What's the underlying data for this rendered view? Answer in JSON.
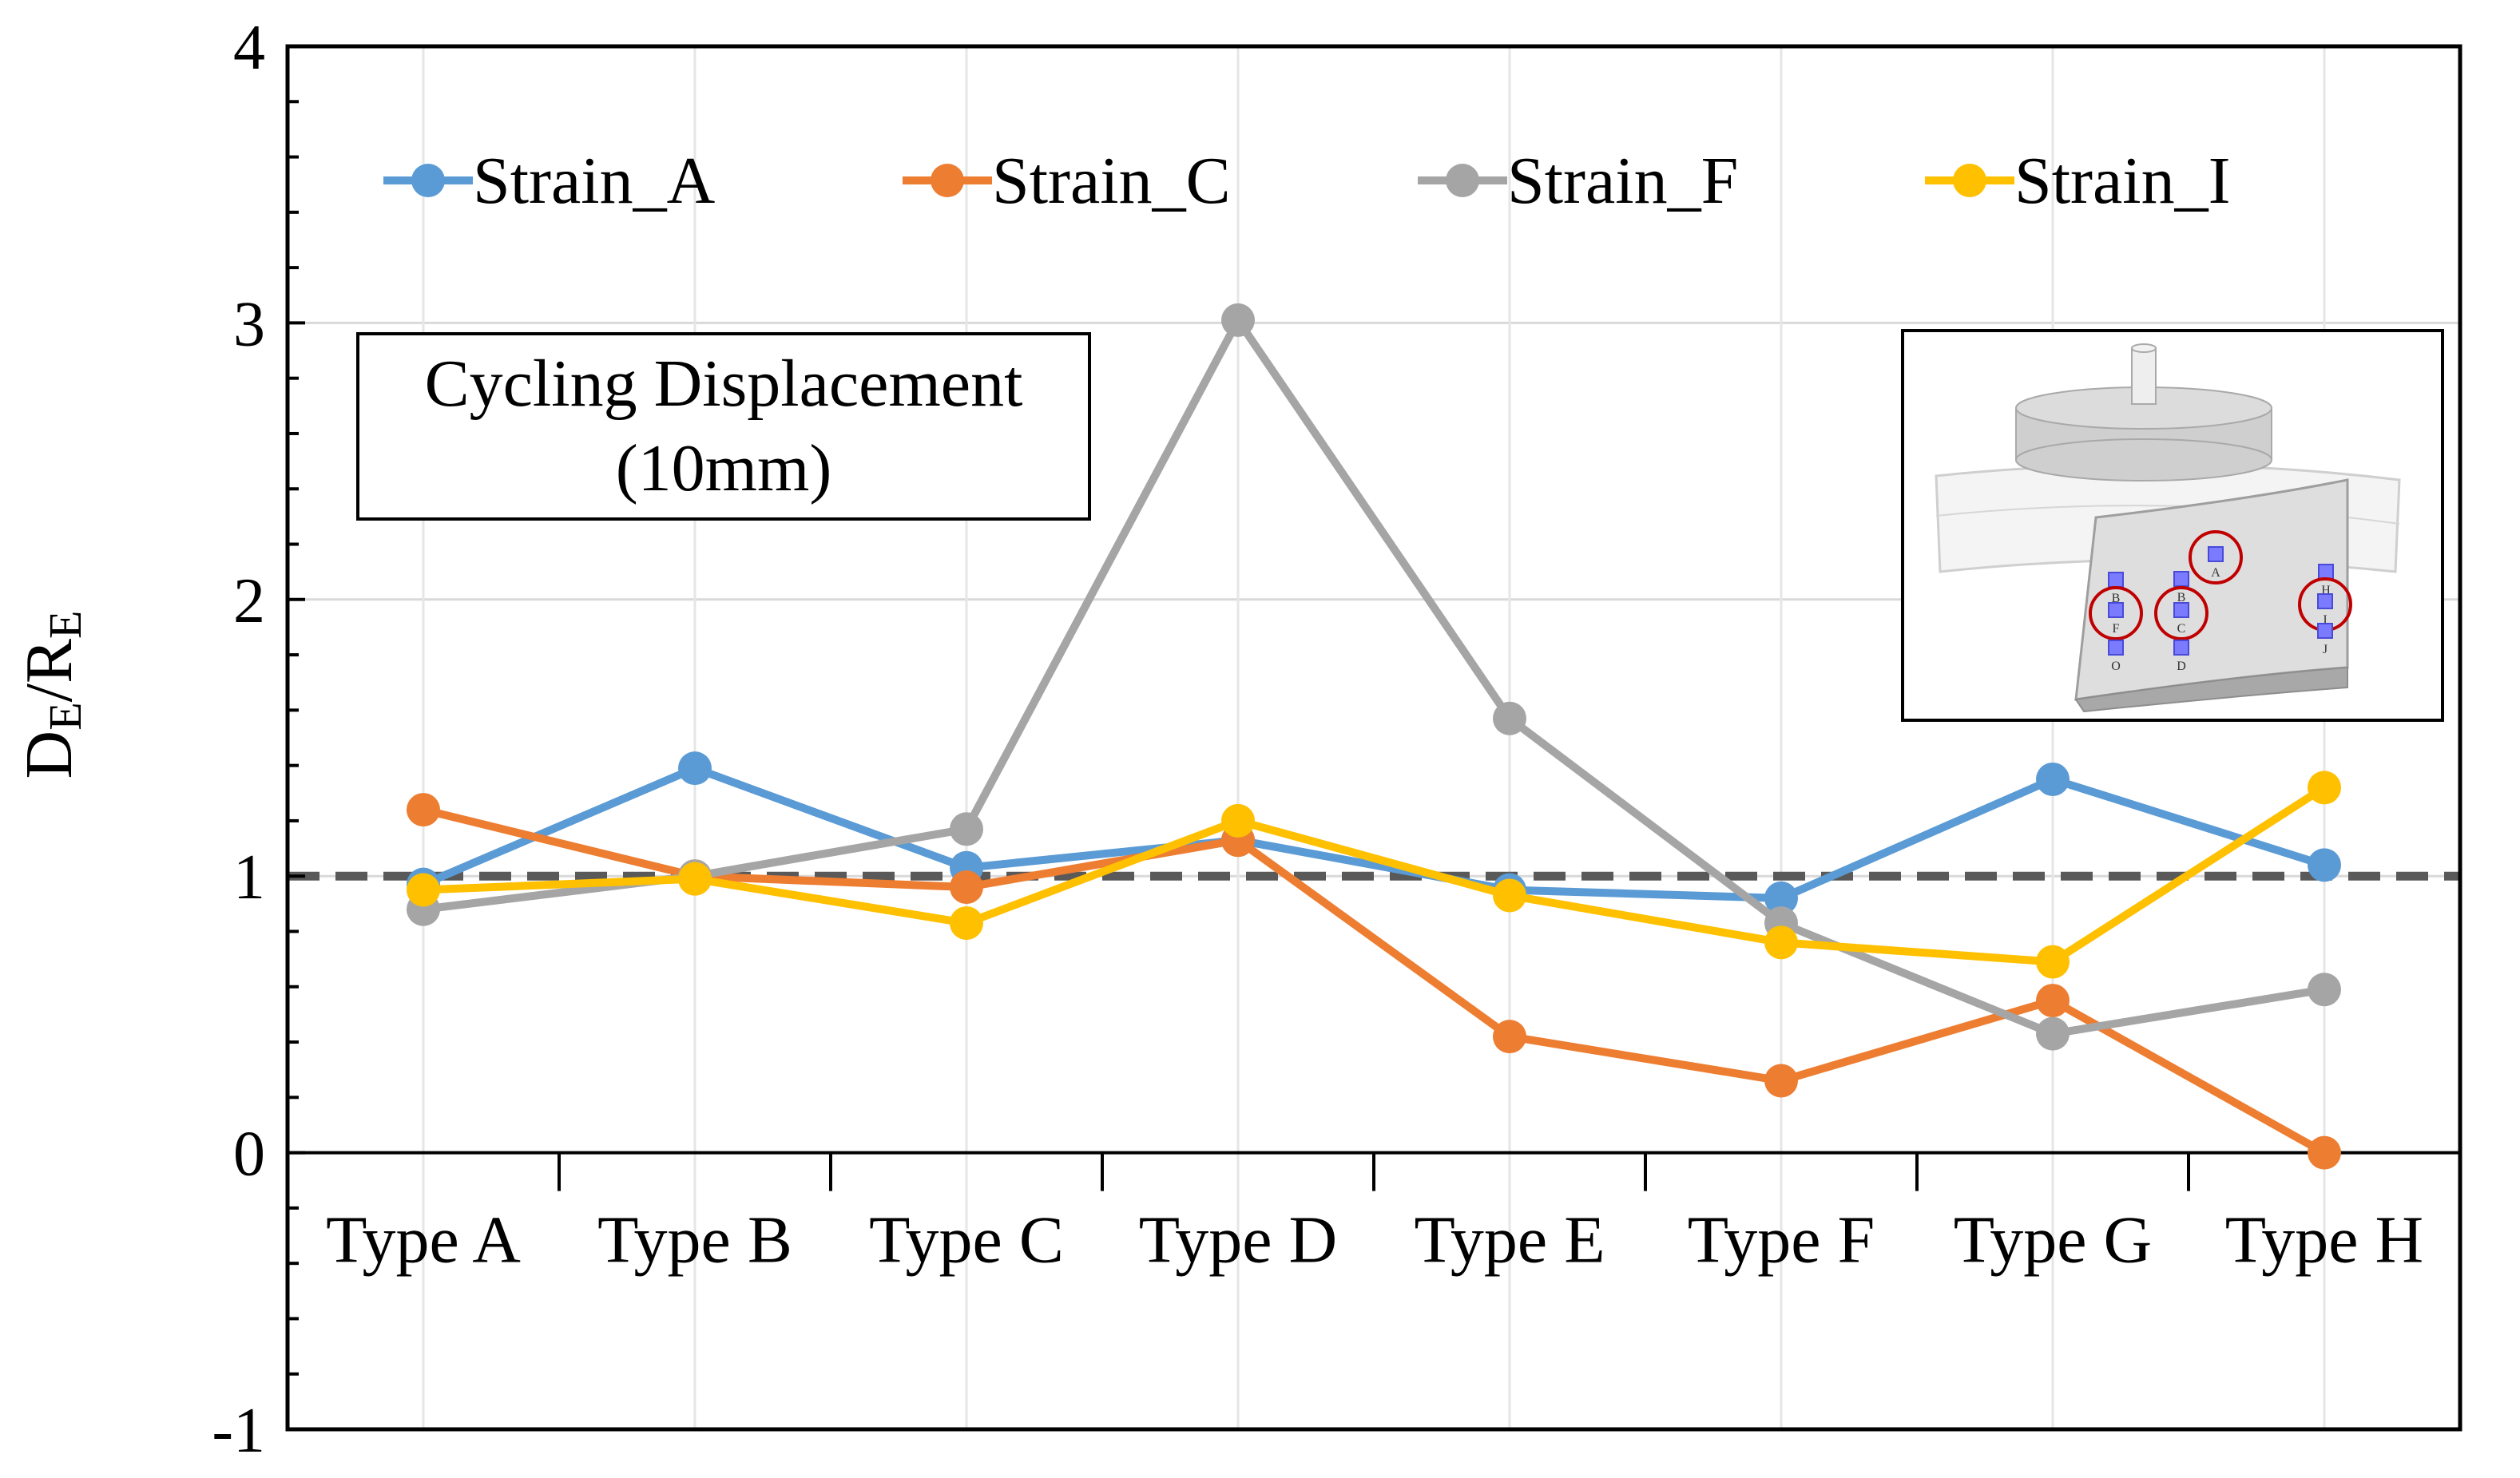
{
  "chart_data": {
    "type": "line",
    "ylabel": {
      "main": "D",
      "sub1": "E",
      "mid": "/R",
      "sub2": "E"
    },
    "categories": [
      "Type A",
      "Type B",
      "Type C",
      "Type D",
      "Type E",
      "Type F",
      "Type G",
      "Type H"
    ],
    "ylim": [
      -1,
      4
    ],
    "yticks": [
      "-1",
      "0",
      "1",
      "2",
      "3",
      "4"
    ],
    "grid": true,
    "legend_position": "top",
    "reference_line": {
      "y": 1,
      "style": "dashed",
      "color": "#595959"
    },
    "annotation": [
      "Cycling Displacement",
      "(10mm)"
    ],
    "series": [
      {
        "name": "Strain_A",
        "color": "#5B9BD5",
        "values": [
          0.97,
          1.39,
          1.03,
          1.13,
          0.95,
          0.92,
          1.35,
          1.04
        ]
      },
      {
        "name": "Strain_C",
        "color": "#ED7D31",
        "values": [
          1.24,
          1.0,
          0.96,
          1.13,
          0.42,
          0.26,
          0.55,
          0.0
        ]
      },
      {
        "name": "Strain_F",
        "color": "#A5A5A5",
        "values": [
          0.88,
          1.0,
          1.17,
          3.01,
          1.57,
          0.83,
          0.43,
          0.59
        ]
      },
      {
        "name": "Strain_I",
        "color": "#FFC000",
        "values": [
          0.95,
          0.99,
          0.83,
          1.2,
          0.93,
          0.76,
          0.69,
          1.32
        ]
      }
    ]
  },
  "inset": {
    "sensor_labels": [
      "A",
      "B",
      "B",
      "H",
      "F",
      "C",
      "I",
      "J",
      "O",
      "D"
    ],
    "highlighted": [
      "A",
      "F",
      "C",
      "I"
    ]
  }
}
